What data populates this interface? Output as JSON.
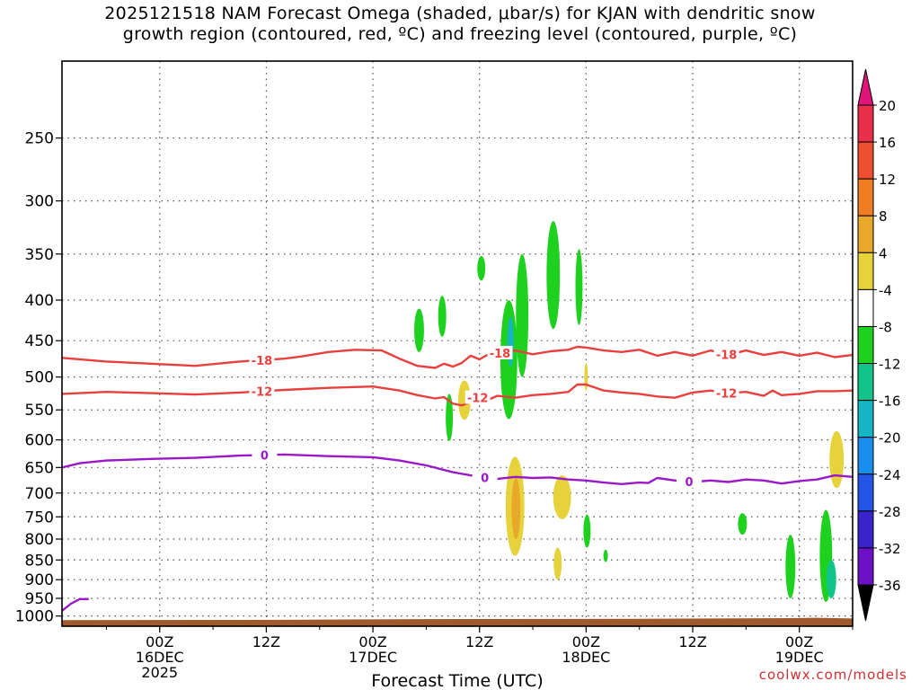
{
  "title": {
    "line1": "2025121518 NAM Forecast Omega (shaded, μbar/s) for KJAN with dendritic snow",
    "line2": "growth region (contoured, red, ºC) and freezing level (contoured, purple, ºC)"
  },
  "credit": "coolwx.com/models",
  "chart_data": {
    "type": "time-height cross-section",
    "xlabel": "Forecast Time (UTC)",
    "ylabel": "",
    "x_range_hours": [
      -5,
      84
    ],
    "x_ticks": [
      {
        "hour": 6,
        "lines": [
          "00Z",
          "16DEC",
          "2025"
        ]
      },
      {
        "hour": 18,
        "lines": [
          "12Z"
        ]
      },
      {
        "hour": 30,
        "lines": [
          "00Z",
          "17DEC"
        ]
      },
      {
        "hour": 42,
        "lines": [
          "12Z"
        ]
      },
      {
        "hour": 54,
        "lines": [
          "00Z",
          "18DEC"
        ]
      },
      {
        "hour": 66,
        "lines": [
          "12Z"
        ]
      },
      {
        "hour": 78,
        "lines": [
          "00Z",
          "19DEC"
        ]
      }
    ],
    "y_scale": "log-pressure (hPa, inverted)",
    "y_range_hpa": [
      200,
      1030
    ],
    "y_ticks": [
      250,
      300,
      350,
      400,
      450,
      500,
      550,
      600,
      650,
      700,
      750,
      800,
      850,
      900,
      950,
      1000
    ],
    "grid": true,
    "colorbar": {
      "labels": [
        "20",
        "16",
        "12",
        "8",
        "4",
        "-4",
        "-8",
        "-12",
        "-16",
        "-20",
        "-24",
        "-28",
        "-32",
        "-36"
      ],
      "colors": [
        "#e8304a",
        "#f04e30",
        "#f07c24",
        "#e8a82a",
        "#e6d23a",
        "#ffffff",
        "#1ed11e",
        "#12c48a",
        "#16b4c4",
        "#1a8ef0",
        "#2454e8",
        "#3a22cc",
        "#6e10c8",
        "#9a10c0",
        "#aaaaaa"
      ],
      "top_arrow_color": "#e0157a",
      "bottom_arrow_color": "#000000"
    },
    "terrain_color": "#9e5a2c",
    "contours": [
      {
        "label": "-18",
        "color": "#e8403e",
        "label_hours": [
          17.5,
          44.3,
          69.8
        ],
        "points": [
          [
            -5,
            473
          ],
          [
            0,
            478
          ],
          [
            5,
            481
          ],
          [
            10,
            484
          ],
          [
            15,
            478
          ],
          [
            20,
            474
          ],
          [
            22,
            471
          ],
          [
            25,
            465
          ],
          [
            28,
            462
          ],
          [
            31,
            463
          ],
          [
            33,
            474
          ],
          [
            35,
            484
          ],
          [
            37,
            487
          ],
          [
            38,
            481
          ],
          [
            39,
            485
          ],
          [
            40,
            480
          ],
          [
            41,
            470
          ],
          [
            42,
            475
          ],
          [
            43,
            468
          ],
          [
            44,
            467
          ],
          [
            46,
            463
          ],
          [
            48,
            468
          ],
          [
            50,
            464
          ],
          [
            52,
            462
          ],
          [
            53,
            458
          ],
          [
            54,
            459
          ],
          [
            56,
            463
          ],
          [
            58,
            465
          ],
          [
            60,
            462
          ],
          [
            62,
            470
          ],
          [
            64,
            465
          ],
          [
            66,
            470
          ],
          [
            68,
            463
          ],
          [
            70,
            469
          ],
          [
            72,
            463
          ],
          [
            74,
            469
          ],
          [
            76,
            465
          ],
          [
            78,
            470
          ],
          [
            80,
            466
          ],
          [
            82,
            472
          ],
          [
            84,
            469
          ]
        ]
      },
      {
        "label": "-12",
        "color": "#e8403e",
        "label_hours": [
          17.5,
          41.8,
          69.8
        ],
        "points": [
          [
            -5,
            525
          ],
          [
            0,
            522
          ],
          [
            5,
            524
          ],
          [
            10,
            526
          ],
          [
            15,
            523
          ],
          [
            20,
            519
          ],
          [
            25,
            516
          ],
          [
            30,
            514
          ],
          [
            33,
            520
          ],
          [
            35,
            527
          ],
          [
            37,
            532
          ],
          [
            38,
            530
          ],
          [
            39,
            540
          ],
          [
            40,
            543
          ],
          [
            41,
            538
          ],
          [
            42,
            529
          ],
          [
            43,
            534
          ],
          [
            44,
            528
          ],
          [
            46,
            531
          ],
          [
            48,
            527
          ],
          [
            50,
            525
          ],
          [
            52,
            522
          ],
          [
            53,
            511
          ],
          [
            54,
            511
          ],
          [
            56,
            520
          ],
          [
            58,
            523
          ],
          [
            60,
            525
          ],
          [
            62,
            529
          ],
          [
            64,
            531
          ],
          [
            66,
            523
          ],
          [
            68,
            520
          ],
          [
            70,
            524
          ],
          [
            72,
            522
          ],
          [
            74,
            528
          ],
          [
            75,
            520
          ],
          [
            76,
            527
          ],
          [
            78,
            525
          ],
          [
            80,
            521
          ],
          [
            82,
            521
          ],
          [
            84,
            520
          ]
        ]
      },
      {
        "label": "0",
        "color": "#9a18c8",
        "label_hours": [
          17.8,
          42.6,
          65.6
        ],
        "points": [
          [
            -5,
            650
          ],
          [
            -3,
            642
          ],
          [
            0,
            637
          ],
          [
            5,
            634
          ],
          [
            10,
            632
          ],
          [
            15,
            628
          ],
          [
            20,
            626
          ],
          [
            25,
            629
          ],
          [
            30,
            631
          ],
          [
            33,
            637
          ],
          [
            36,
            646
          ],
          [
            39,
            659
          ],
          [
            42,
            668
          ],
          [
            44,
            672
          ],
          [
            46,
            668
          ],
          [
            48,
            670
          ],
          [
            50,
            669
          ],
          [
            52,
            673
          ],
          [
            54,
            675
          ],
          [
            56,
            679
          ],
          [
            58,
            682
          ],
          [
            60,
            679
          ],
          [
            61,
            680
          ],
          [
            62,
            670
          ],
          [
            64,
            675
          ],
          [
            66,
            678
          ],
          [
            68,
            675
          ],
          [
            70,
            678
          ],
          [
            72,
            673
          ],
          [
            74,
            675
          ],
          [
            76,
            681
          ],
          [
            78,
            676
          ],
          [
            80,
            673
          ],
          [
            82,
            665
          ],
          [
            84,
            668
          ]
        ]
      }
    ],
    "omega_blobs": [
      {
        "hour": 35.2,
        "p_min": 410,
        "p_max": 465,
        "half_width_h": 0.55,
        "color": "#1ed11e"
      },
      {
        "hour": 37.8,
        "p_min": 395,
        "p_max": 445,
        "half_width_h": 0.45,
        "color": "#1ed11e"
      },
      {
        "hour": 38.6,
        "p_min": 525,
        "p_max": 602,
        "half_width_h": 0.4,
        "color": "#1ed11e"
      },
      {
        "hour": 40.3,
        "p_min": 505,
        "p_max": 566,
        "half_width_h": 0.7,
        "color": "#e6d23a"
      },
      {
        "hour": 42.2,
        "p_min": 352,
        "p_max": 378,
        "half_width_h": 0.45,
        "color": "#1ed11e"
      },
      {
        "hour": 46.8,
        "p_min": 350,
        "p_max": 500,
        "half_width_h": 0.7,
        "color": "#1ed11e"
      },
      {
        "hour": 45.3,
        "p_min": 400,
        "p_max": 565,
        "half_width_h": 0.95,
        "color": "#1ed11e"
      },
      {
        "hour": 45.5,
        "p_min": 420,
        "p_max": 485,
        "half_width_h": 0.35,
        "color": "#16b4c4"
      },
      {
        "hour": 50.3,
        "p_min": 318,
        "p_max": 435,
        "half_width_h": 0.75,
        "color": "#1ed11e"
      },
      {
        "hour": 53.2,
        "p_min": 345,
        "p_max": 430,
        "half_width_h": 0.4,
        "color": "#1ed11e"
      },
      {
        "hour": 54.0,
        "p_min": 480,
        "p_max": 520,
        "half_width_h": 0.2,
        "color": "#e6d23a"
      },
      {
        "hour": 46.0,
        "p_min": 630,
        "p_max": 840,
        "half_width_h": 1.05,
        "color": "#e6d23a"
      },
      {
        "hour": 46.1,
        "p_min": 670,
        "p_max": 800,
        "half_width_h": 0.5,
        "color": "#e8a82a"
      },
      {
        "hour": 51.3,
        "p_min": 665,
        "p_max": 755,
        "half_width_h": 1.0,
        "color": "#e6d23a"
      },
      {
        "hour": 50.8,
        "p_min": 820,
        "p_max": 900,
        "half_width_h": 0.45,
        "color": "#e6d23a"
      },
      {
        "hour": 54.1,
        "p_min": 745,
        "p_max": 820,
        "half_width_h": 0.4,
        "color": "#1ed11e"
      },
      {
        "hour": 56.2,
        "p_min": 825,
        "p_max": 855,
        "half_width_h": 0.25,
        "color": "#1ed11e"
      },
      {
        "hour": 71.6,
        "p_min": 742,
        "p_max": 790,
        "half_width_h": 0.5,
        "color": "#1ed11e"
      },
      {
        "hour": 77.0,
        "p_min": 790,
        "p_max": 950,
        "half_width_h": 0.55,
        "color": "#1ed11e"
      },
      {
        "hour": 81.0,
        "p_min": 735,
        "p_max": 960,
        "half_width_h": 0.7,
        "color": "#1ed11e"
      },
      {
        "hour": 81.6,
        "p_min": 850,
        "p_max": 950,
        "half_width_h": 0.55,
        "color": "#12c48a"
      },
      {
        "hour": 82.2,
        "p_min": 585,
        "p_max": 690,
        "half_width_h": 0.8,
        "color": "#e6d23a"
      }
    ],
    "extra_purple_segment": [
      [
        -5,
        985
      ],
      [
        -4,
        965
      ],
      [
        -3,
        952
      ],
      [
        -2,
        952
      ]
    ]
  }
}
